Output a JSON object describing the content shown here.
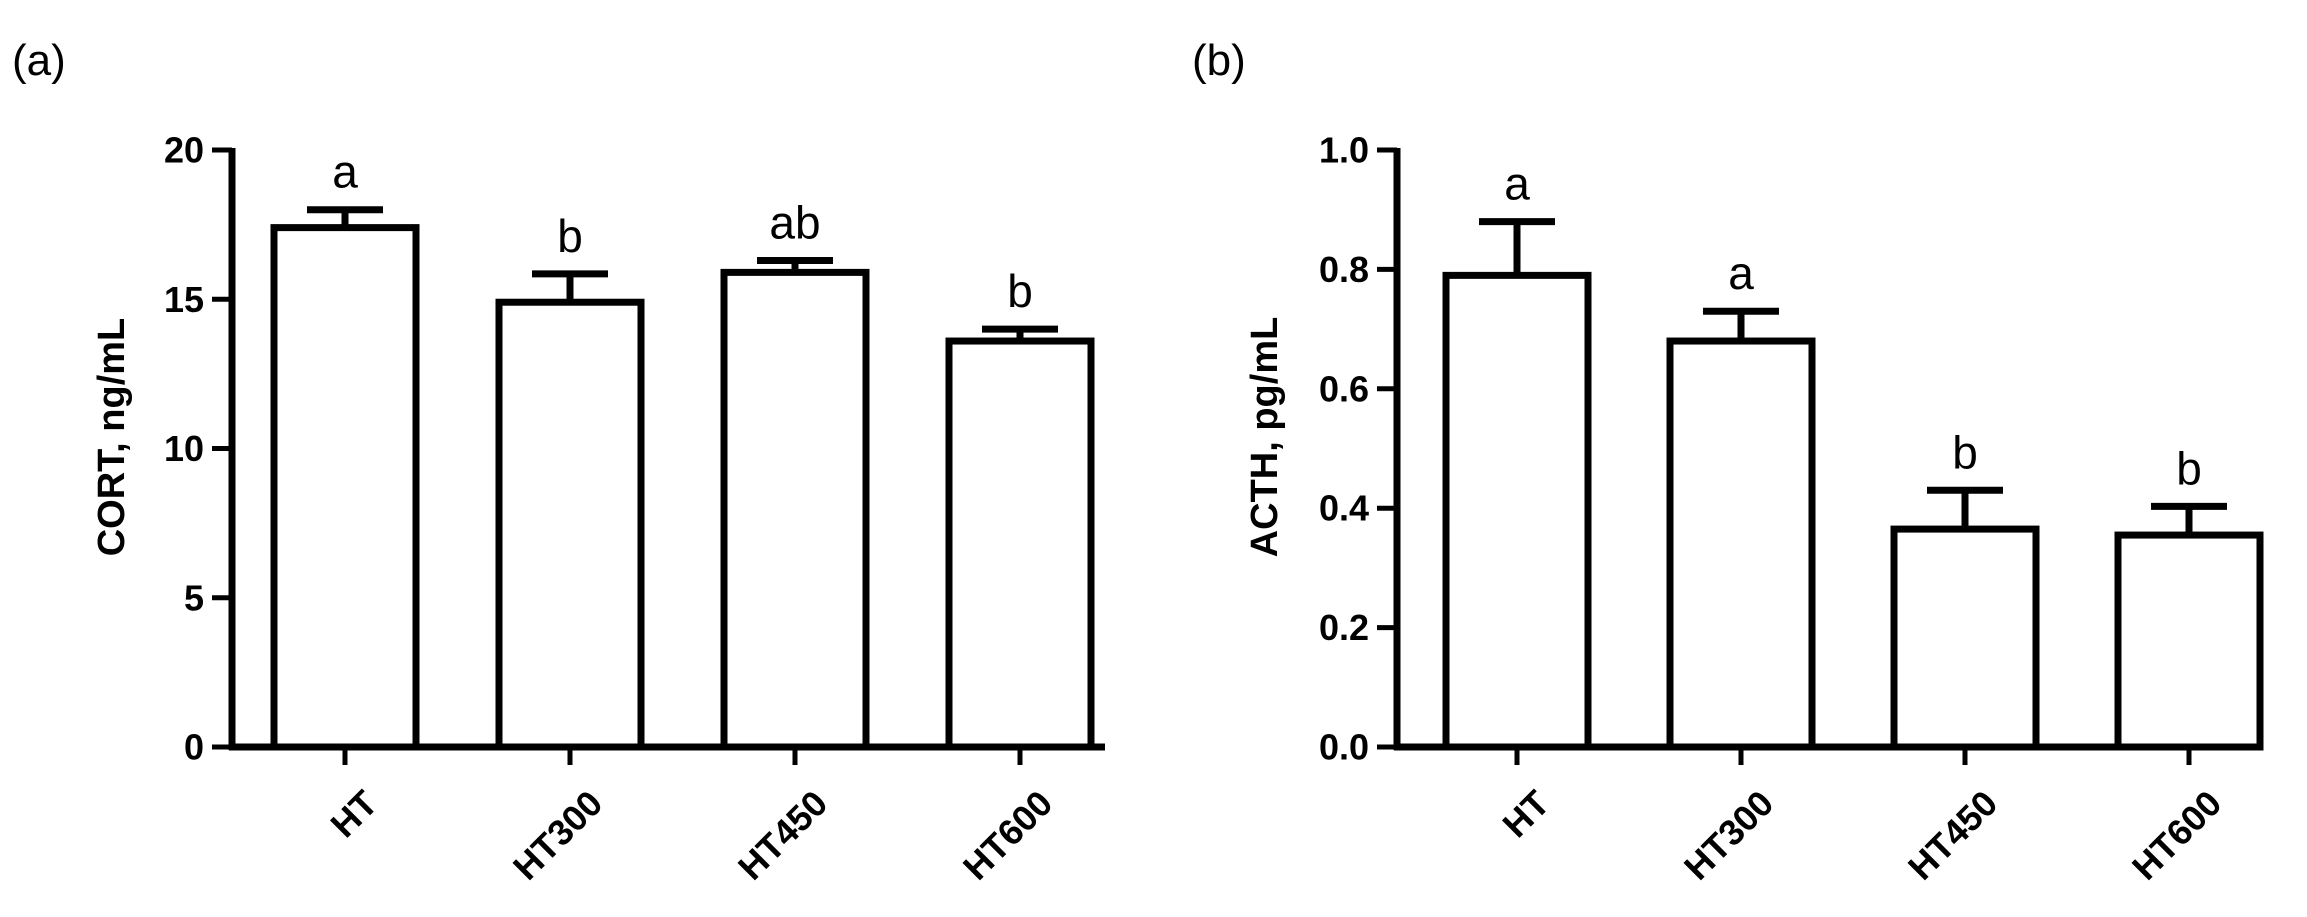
{
  "chart_data": [
    {
      "type": "bar",
      "panel_label": "(a)",
      "ylabel": "CORT, ng/mL",
      "ylim": [
        0,
        20
      ],
      "yticks": [
        "0",
        "5",
        "10",
        "15",
        "20"
      ],
      "categories": [
        "HT",
        "HT300",
        "HT450",
        "HT600"
      ],
      "values": [
        17.4,
        14.9,
        15.9,
        13.6
      ],
      "errors": [
        0.6,
        0.95,
        0.4,
        0.4
      ],
      "significance": [
        "a",
        "b",
        "ab",
        "b"
      ],
      "bar_fill": "#ffffff",
      "stroke_color": "#000000"
    },
    {
      "type": "bar",
      "panel_label": "(b)",
      "ylabel": "ACTH, pg/mL",
      "ylim": [
        0,
        1.0
      ],
      "yticks": [
        "0.0",
        "0.2",
        "0.4",
        "0.6",
        "0.8",
        "1.0"
      ],
      "categories": [
        "HT",
        "HT300",
        "HT450",
        "HT600"
      ],
      "values": [
        0.79,
        0.68,
        0.365,
        0.355
      ],
      "errors": [
        0.09,
        0.05,
        0.065,
        0.048
      ],
      "significance": [
        "a",
        "a",
        "b",
        "b"
      ],
      "bar_fill": "#ffffff",
      "stroke_color": "#000000"
    }
  ]
}
